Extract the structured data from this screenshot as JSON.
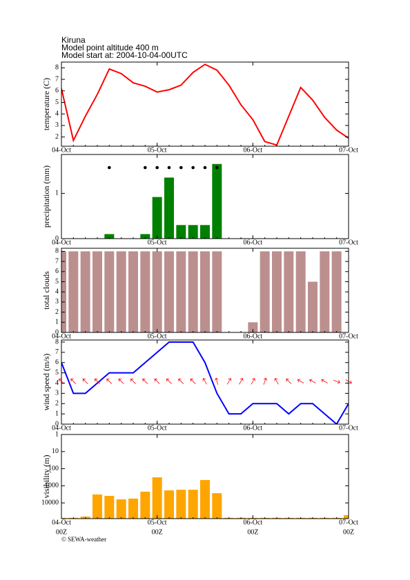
{
  "header": {
    "lines": [
      "Kiruna",
      "Model point altitude  400 m",
      "Model start at: 2004-10-04-00UTC"
    ]
  },
  "footer": "© SEWA-weather",
  "chart_data": [
    {
      "type": "line",
      "ylabel": "temperature (C)",
      "color": "#ff0000",
      "x": [
        0,
        3,
        6,
        9,
        12,
        15,
        18,
        21,
        24,
        27,
        30,
        33,
        36,
        39,
        42,
        45,
        48,
        51,
        54,
        57,
        60,
        63,
        66,
        69,
        72
      ],
      "values": [
        6.2,
        1.7,
        3.8,
        5.7,
        7.9,
        7.5,
        6.7,
        6.4,
        5.9,
        6.1,
        6.5,
        7.6,
        8.3,
        7.8,
        6.5,
        4.8,
        3.5,
        1.6,
        1.3,
        3.8,
        6.3,
        5.2,
        3.7,
        2.6,
        1.9
      ],
      "xlim": [
        0,
        72
      ],
      "xticks": [
        {
          "value": 0,
          "label": "04-Oct"
        },
        {
          "value": 24,
          "label": "05-Oct"
        },
        {
          "value": 48,
          "label": "06-Oct"
        },
        {
          "value": 72,
          "label": "07-Oct"
        }
      ],
      "ylim": [
        1.2,
        8.5
      ],
      "yticks": [
        2,
        3,
        4,
        5,
        6,
        7,
        8
      ]
    },
    {
      "type": "bar",
      "ylabel": "precipitation (mm)",
      "color": "#008000",
      "symbol_color": "#000000",
      "x": [
        12,
        21,
        24,
        27,
        30,
        33,
        36,
        39
      ],
      "values": [
        0.1,
        0.1,
        0.92,
        1.35,
        0.3,
        0.3,
        0.3,
        1.65
      ],
      "xlim": [
        0,
        72
      ],
      "xticks": [
        {
          "value": 0,
          "label": "04-Oct"
        },
        {
          "value": 24,
          "label": "05-Oct"
        },
        {
          "value": 48,
          "label": "06-Oct"
        },
        {
          "value": 72,
          "label": "07-Oct"
        }
      ],
      "ylim": [
        0,
        1.86
      ],
      "yticks": [
        0,
        1
      ]
    },
    {
      "type": "bar",
      "ylabel": "total clouds",
      "color": "#bc8f8f",
      "x": [
        0,
        3,
        6,
        9,
        12,
        15,
        18,
        21,
        24,
        27,
        30,
        33,
        36,
        39,
        42,
        45,
        48,
        51,
        54,
        57,
        60,
        63,
        66,
        69,
        72
      ],
      "values": [
        8,
        8,
        8,
        8,
        8,
        8,
        8,
        8,
        8,
        8,
        8,
        8,
        8,
        8,
        0,
        0,
        1,
        8,
        8,
        8,
        8,
        5,
        8,
        8,
        0
      ],
      "xlim": [
        0,
        72
      ],
      "xticks": [
        {
          "value": 0,
          "label": "04-Oct"
        },
        {
          "value": 24,
          "label": "05-Oct"
        },
        {
          "value": 48,
          "label": "06-Oct"
        },
        {
          "value": 72,
          "label": "07-Oct"
        }
      ],
      "ylim": [
        0,
        8.3
      ],
      "yticks": [
        0,
        1,
        2,
        3,
        4,
        5,
        6,
        7,
        8
      ]
    },
    {
      "type": "line",
      "ylabel": "wind speed (m/s)",
      "color": "#0000ff",
      "direction_color": "#ff0000",
      "x": [
        0,
        3,
        6,
        9,
        12,
        15,
        18,
        21,
        24,
        27,
        30,
        33,
        36,
        39,
        42,
        45,
        48,
        51,
        54,
        57,
        60,
        63,
        66,
        69,
        72
      ],
      "values": [
        6,
        3,
        3,
        4,
        5,
        5,
        5,
        6,
        7,
        8,
        8,
        8,
        6,
        3,
        1,
        1,
        2,
        2,
        2,
        1,
        2,
        2,
        1,
        0,
        2
      ],
      "directions": [
        315,
        315,
        315,
        315,
        315,
        315,
        315,
        315,
        315,
        315,
        315,
        315,
        330,
        345,
        30,
        30,
        30,
        20,
        330,
        315,
        300,
        300,
        300,
        110,
        120
      ],
      "xlim": [
        0,
        72
      ],
      "xticks": [
        {
          "value": 0,
          "label": "04-Oct"
        },
        {
          "value": 24,
          "label": "05-Oct"
        },
        {
          "value": 48,
          "label": "06-Oct"
        },
        {
          "value": 72,
          "label": "07-Oct"
        }
      ],
      "ylim": [
        0,
        8.2
      ],
      "yticks": [
        0,
        1,
        2,
        3,
        4,
        5,
        6,
        7,
        8
      ]
    },
    {
      "type": "bar",
      "ylabel": "visibility (m)",
      "color": "#ffa500",
      "ylog": true,
      "yreverse": true,
      "x": [
        0,
        3,
        6,
        9,
        12,
        15,
        18,
        21,
        24,
        27,
        30,
        33,
        36,
        39,
        42,
        45,
        48,
        51,
        54,
        57,
        60,
        63,
        66,
        69,
        72
      ],
      "values": [
        75000,
        75000,
        63000,
        3200,
        3900,
        6200,
        5600,
        2200,
        320,
        1850,
        1700,
        1700,
        460,
        2700,
        75000,
        75000,
        75000,
        75000,
        75000,
        75000,
        75000,
        75000,
        75000,
        75000,
        52000
      ],
      "xlim": [
        0,
        72
      ],
      "xticks": [
        {
          "value": 0,
          "label": "04-Oct"
        },
        {
          "value": 24,
          "label": "05-Oct"
        },
        {
          "value": 48,
          "label": "06-Oct"
        },
        {
          "value": 72,
          "label": "07-Oct"
        }
      ],
      "xtick_sublabels": [
        "00Z",
        "00Z",
        "00Z",
        "00Z"
      ],
      "ylim": [
        1,
        83000
      ],
      "yticks": [
        1,
        10,
        100,
        1000,
        10000
      ]
    }
  ]
}
